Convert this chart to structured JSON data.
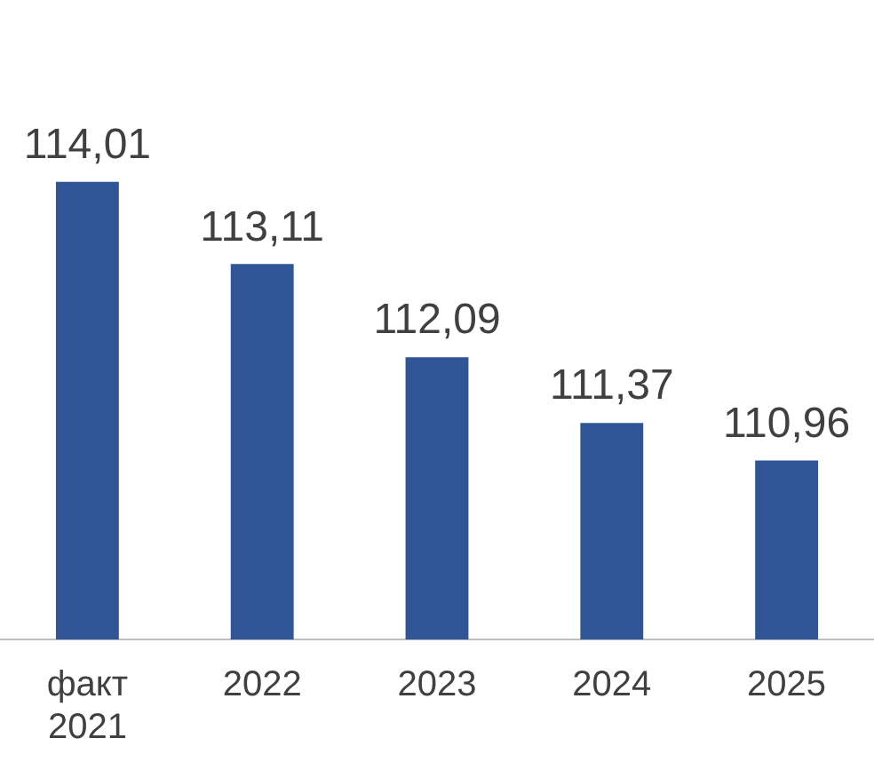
{
  "chart_data": {
    "type": "bar",
    "categories": [
      "факт\n2021",
      "2022",
      "2023",
      "2024",
      "2025"
    ],
    "values": [
      114.01,
      113.11,
      112.09,
      111.37,
      110.96
    ],
    "color": "#2f5597",
    "data_labels": true,
    "value_labels": [
      "114,01",
      "113,11",
      "112,09",
      "111,37",
      "110,96"
    ],
    "grid": false,
    "legend": false,
    "tick_labels": "x"
  }
}
